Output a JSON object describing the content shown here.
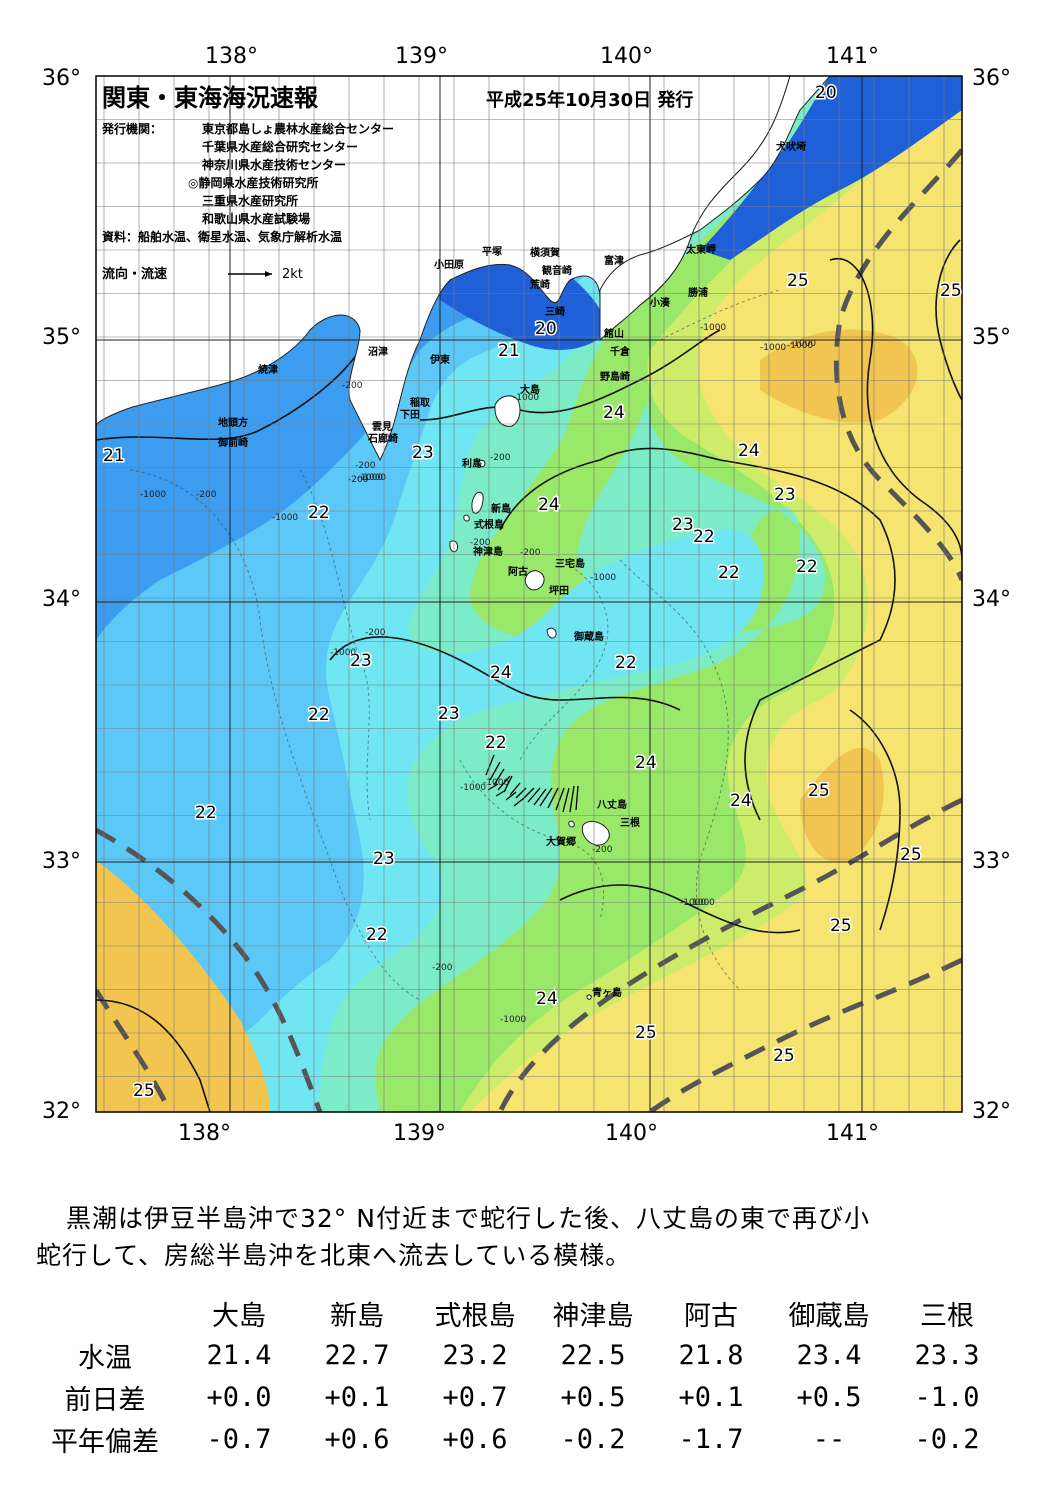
{
  "header": {
    "title": "関東・東海海況速報",
    "issue_date": "平成25年10月30日 発行",
    "publisher_label": "発行機関：",
    "publishers": [
      "東京都島しょ農林水産総合センター",
      "千葉県水産総合研究センター",
      "神奈川県水産技術センター",
      "◎静岡県水産技術研究所",
      "三重県水産研究所",
      "和歌山県水産試験場"
    ],
    "source": "資料：船舶水温、衛星水温、気象庁解析水温",
    "legend_label": "流向・流速",
    "legend_scale": "2kt"
  },
  "axes": {
    "lon_labels": [
      "138°",
      "139°",
      "140°",
      "141°"
    ],
    "lat_labels": [
      "36°",
      "35°",
      "34°",
      "33°",
      "32°"
    ]
  },
  "colors": {
    "deep_blue": "#1f5fd8",
    "blue": "#3c9cf0",
    "light_blue": "#5cc8f8",
    "cyan": "#70e6f2",
    "aqua": "#7cecc8",
    "green": "#9ae86a",
    "yellow_green": "#cdec6a",
    "yellow": "#f6e470",
    "orange": "#f2c450",
    "land": "#ffffff",
    "kuroshio_axis": "#555555"
  },
  "places": {
    "oshima": "大島",
    "niijima": "新島",
    "toshima": "利島",
    "shikinejima": "式根島",
    "kozushima": "神津島",
    "miyake": "三宅島",
    "ako": "阿古",
    "tsubota": "坪田",
    "mikura": "御蔵島",
    "hachijo": "八丈島",
    "mine": "三根",
    "okago": "大賀郷",
    "aogashima": "青ヶ島",
    "odawara": "小田原",
    "hiratsuka": "平塚",
    "yokosuka": "横須賀",
    "kannonzaki": "観音崎",
    "arasaki": "荒崎",
    "misaki": "三崎",
    "futtsu": "富津",
    "tateyama": "館山",
    "chikura": "千倉",
    "nojimazaki": "野島崎",
    "kominato": "小湊",
    "katsuura": "勝浦",
    "taito": "太東岬",
    "inubo": "犬吠埼",
    "numazu": "沼津",
    "ito": "伊東",
    "inatori": "稲取",
    "shimoda": "下田",
    "kumomi": "雲見",
    "irozaki": "石廊崎",
    "yaizu": "焼津",
    "jitogata": "地頭方",
    "omaezaki": "御前崎"
  },
  "isotherms": [
    {
      "label": "20"
    },
    {
      "label": "20"
    },
    {
      "label": "21"
    },
    {
      "label": "21"
    },
    {
      "label": "22"
    },
    {
      "label": "22"
    },
    {
      "label": "22"
    },
    {
      "label": "22"
    },
    {
      "label": "22"
    },
    {
      "label": "22"
    },
    {
      "label": "22"
    },
    {
      "label": "22"
    },
    {
      "label": "22"
    },
    {
      "label": "23"
    },
    {
      "label": "23"
    },
    {
      "label": "23"
    },
    {
      "label": "23"
    },
    {
      "label": "23"
    },
    {
      "label": "24"
    },
    {
      "label": "24"
    },
    {
      "label": "24"
    },
    {
      "label": "24"
    },
    {
      "label": "24"
    },
    {
      "label": "24"
    },
    {
      "label": "24"
    },
    {
      "label": "25"
    },
    {
      "label": "25"
    },
    {
      "label": "25"
    },
    {
      "label": "25"
    },
    {
      "label": "25"
    },
    {
      "label": "25"
    },
    {
      "label": "25"
    },
    {
      "label": "25"
    },
    {
      "label": "23"
    }
  ],
  "depth_labels": [
    "-1000",
    "-200",
    "-1000",
    "-200",
    "-1000",
    "-1000",
    "-200",
    "-200",
    "-1000",
    "-200",
    "-200",
    "-1000",
    "-1000",
    "-200",
    "-1000",
    "-1000",
    "-1000",
    "-200",
    "-1000",
    "-200",
    "-1000",
    "1000",
    "-200",
    "-1000",
    "-1000",
    "-1000"
  ],
  "summary": {
    "line1": "黒潮は伊豆半島沖で32° N付近まで蛇行した後、八丈島の東で再び小",
    "line2": "蛇行して、房総半島沖を北東へ流去している模様。"
  },
  "table": {
    "columns": [
      "大島",
      "新島",
      "式根島",
      "神津島",
      "阿古",
      "御蔵島",
      "三根"
    ],
    "rows": [
      {
        "label": "水温",
        "values": [
          "21.4",
          "22.7",
          "23.2",
          "22.5",
          "21.8",
          "23.4",
          "23.3"
        ]
      },
      {
        "label": "前日差",
        "values": [
          "+0.0",
          "+0.1",
          "+0.7",
          "+0.5",
          "+0.1",
          "+0.5",
          "-1.0"
        ]
      },
      {
        "label": "平年偏差",
        "values": [
          "-0.7",
          "+0.6",
          "+0.6",
          "-0.2",
          "-1.7",
          "--",
          "-0.2"
        ]
      }
    ]
  }
}
